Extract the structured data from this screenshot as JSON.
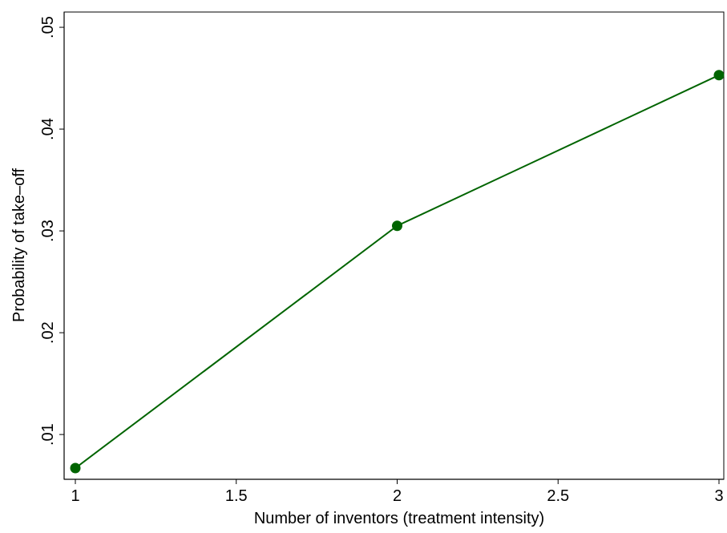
{
  "chart_data": {
    "type": "line",
    "title": "",
    "xlabel": "Number of inventors (treatment intensity)",
    "ylabel": "Probability of take–off",
    "xlim": [
      1,
      3
    ],
    "ylim": [
      0.0056,
      0.0515
    ],
    "xticks": [
      {
        "value": 1,
        "label": "1"
      },
      {
        "value": 1.5,
        "label": "1.5"
      },
      {
        "value": 2,
        "label": "2"
      },
      {
        "value": 2.5,
        "label": "2.5"
      },
      {
        "value": 3,
        "label": "3"
      }
    ],
    "yticks": [
      {
        "value": 0.01,
        "label": ".01"
      },
      {
        "value": 0.02,
        "label": ".02"
      },
      {
        "value": 0.03,
        "label": ".03"
      },
      {
        "value": 0.04,
        "label": ".04"
      },
      {
        "value": 0.05,
        "label": ".05"
      }
    ],
    "grid": false,
    "legend": "none",
    "series": [
      {
        "color": "#006400",
        "x": [
          1,
          2,
          3
        ],
        "y": [
          0.0067,
          0.0305,
          0.0453
        ]
      }
    ]
  }
}
